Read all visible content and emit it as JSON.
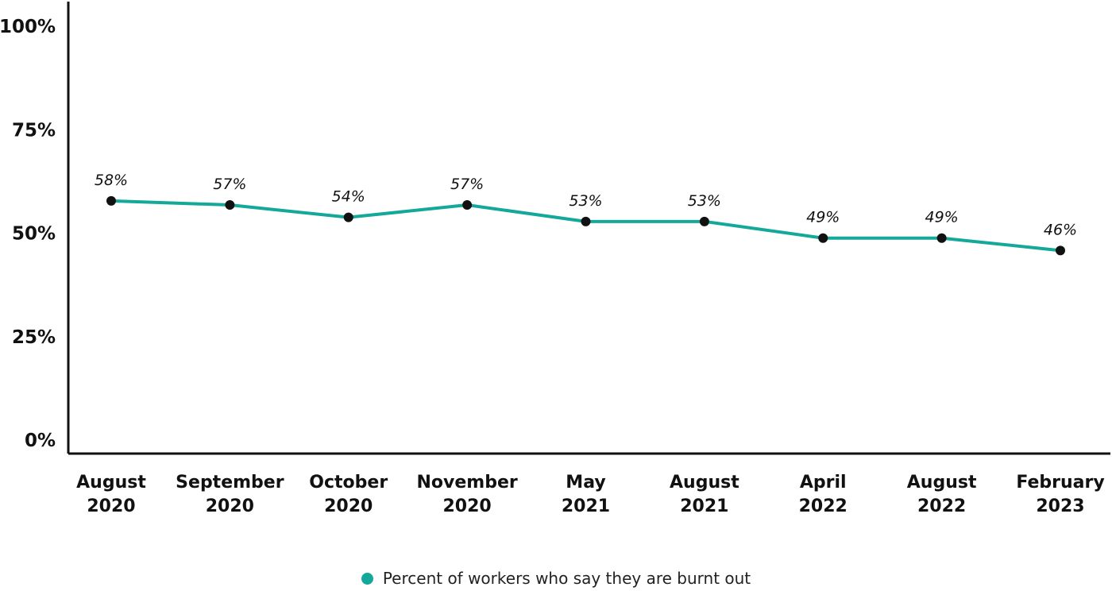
{
  "chart_data": {
    "type": "line",
    "categories": [
      [
        "August",
        "2020"
      ],
      [
        "September",
        "2020"
      ],
      [
        "October",
        "2020"
      ],
      [
        "November",
        "2020"
      ],
      [
        "May",
        "2021"
      ],
      [
        "August",
        "2021"
      ],
      [
        "April",
        "2022"
      ],
      [
        "August",
        "2022"
      ],
      [
        "February",
        "2023"
      ]
    ],
    "series": [
      {
        "name": "Percent of workers who say they are burnt out",
        "values": [
          58,
          57,
          54,
          57,
          53,
          53,
          49,
          49,
          46
        ],
        "data_labels": [
          "58%",
          "57%",
          "54%",
          "57%",
          "53%",
          "53%",
          "49%",
          "49%",
          "46%"
        ]
      }
    ],
    "ylim": [
      0,
      100
    ],
    "yticks": [
      {
        "value": 100,
        "label": "100%"
      },
      {
        "value": 75,
        "label": "75%"
      },
      {
        "value": 50,
        "label": "50%"
      },
      {
        "value": 25,
        "label": "25%"
      },
      {
        "value": 0,
        "label": "0%"
      }
    ],
    "grid": false,
    "legend_position": "bottom",
    "colors": {
      "line": "#14a89a",
      "marker": "#111111",
      "axis": "#111111"
    }
  }
}
